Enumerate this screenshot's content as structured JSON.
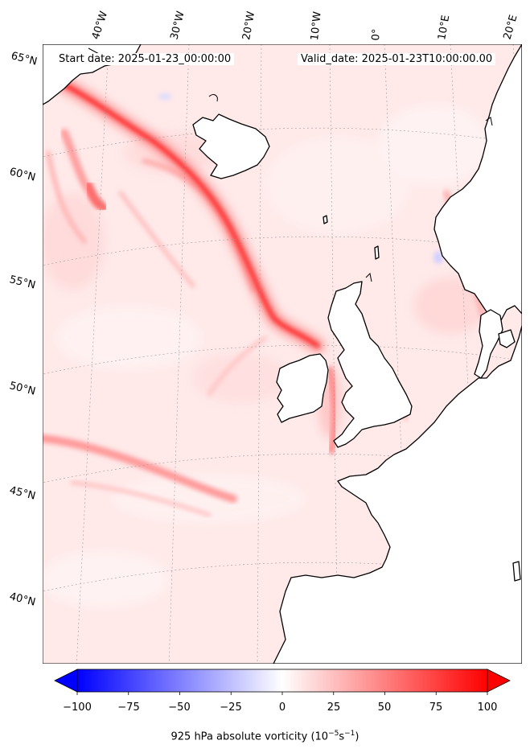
{
  "header": {
    "start_label": "Start date: 2025-01-23_00:00:00",
    "valid_label": "Valid_date: 2025-01-23T10:00:00.00"
  },
  "lat_labels": [
    "65°N",
    "60°N",
    "55°N",
    "50°N",
    "45°N",
    "40°N"
  ],
  "lon_labels": [
    "40°W",
    "30°W",
    "20°W",
    "10°W",
    "0°",
    "10°E",
    "20°E"
  ],
  "colorbar": {
    "label_main": "925 hPa absolute vorticity (10",
    "label_sup1": "−5",
    "label_mid": "s",
    "label_sup2": "−1",
    "label_end": ")",
    "ticks": [
      "−100",
      "−75",
      "−50",
      "−25",
      "0",
      "25",
      "50",
      "75",
      "100"
    ],
    "min": -100,
    "max": 100,
    "negative_color": "#0000ff",
    "positive_color": "#ff0000"
  },
  "colors": {
    "land": "#ffffff",
    "coast": "#000000",
    "background_field": "#ffe8e8",
    "strong_vorticity": "#ff1a1a"
  }
}
